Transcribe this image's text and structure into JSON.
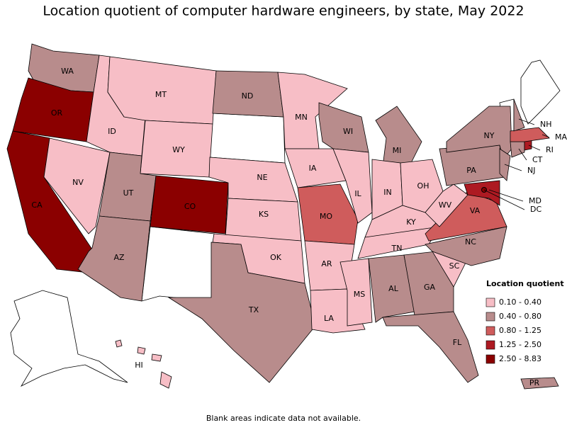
{
  "title": "Location quotient of computer hardware engineers, by state, May 2022",
  "note": "Blank areas indicate data not available.",
  "legend": {
    "title": "Location quotient",
    "entries": [
      {
        "label": "0.10 - 0.40",
        "color": "#f7bec6"
      },
      {
        "label": "0.40 - 0.80",
        "color": "#b88c8c"
      },
      {
        "label": "0.80 - 1.25",
        "color": "#cf5c5c"
      },
      {
        "label": "1.25 - 2.50",
        "color": "#ad1a22"
      },
      {
        "label": "2.50 - 8.83",
        "color": "#8b0000"
      }
    ]
  },
  "states": [
    {
      "label": "WA",
      "color": "#b88c8c"
    },
    {
      "label": "OR",
      "color": "#8b0000"
    },
    {
      "label": "CA",
      "color": "#8b0000"
    },
    {
      "label": "NV",
      "color": "#f7bec6"
    },
    {
      "label": "ID",
      "color": "#f7bec6"
    },
    {
      "label": "MT",
      "color": "#f7bec6"
    },
    {
      "label": "WY",
      "color": "#f7bec6"
    },
    {
      "label": "UT",
      "color": "#b88c8c"
    },
    {
      "label": "CO",
      "color": "#8b0000"
    },
    {
      "label": "AZ",
      "color": "#b88c8c"
    },
    {
      "label": "ND",
      "color": "#b88c8c"
    },
    {
      "label": "NE",
      "color": "#f7bec6"
    },
    {
      "label": "KS",
      "color": "#f7bec6"
    },
    {
      "label": "OK",
      "color": "#f7bec6"
    },
    {
      "label": "TX",
      "color": "#b88c8c"
    },
    {
      "label": "MN",
      "color": "#f7bec6"
    },
    {
      "label": "IA",
      "color": "#f7bec6"
    },
    {
      "label": "MO",
      "color": "#cf5c5c"
    },
    {
      "label": "AR",
      "color": "#f7bec6"
    },
    {
      "label": "LA",
      "color": "#f7bec6"
    },
    {
      "label": "WI",
      "color": "#b88c8c"
    },
    {
      "label": "IL",
      "color": "#f7bec6"
    },
    {
      "label": "MI",
      "color": "#b88c8c"
    },
    {
      "label": "IN",
      "color": "#f7bec6"
    },
    {
      "label": "OH",
      "color": "#f7bec6"
    },
    {
      "label": "KY",
      "color": "#f7bec6"
    },
    {
      "label": "TN",
      "color": "#f7bec6"
    },
    {
      "label": "MS",
      "color": "#f7bec6"
    },
    {
      "label": "AL",
      "color": "#b88c8c"
    },
    {
      "label": "GA",
      "color": "#b88c8c"
    },
    {
      "label": "FL",
      "color": "#b88c8c"
    },
    {
      "label": "SC",
      "color": "#f7bec6"
    },
    {
      "label": "NC",
      "color": "#b88c8c"
    },
    {
      "label": "VA",
      "color": "#cf5c5c"
    },
    {
      "label": "WV",
      "color": "#f7bec6"
    },
    {
      "label": "PA",
      "color": "#b88c8c"
    },
    {
      "label": "NY",
      "color": "#b88c8c"
    },
    {
      "label": "NJ",
      "color": "#b88c8c"
    },
    {
      "label": "CT",
      "color": "#b88c8c"
    },
    {
      "label": "RI",
      "color": "#ad1a22"
    },
    {
      "label": "MA",
      "color": "#cf5c5c"
    },
    {
      "label": "NH",
      "color": "#b88c8c"
    },
    {
      "label": "MD",
      "color": "#ad1a22"
    },
    {
      "label": "DC",
      "color": "#8b0000"
    },
    {
      "label": "HI",
      "color": "#f7bec6"
    },
    {
      "label": "PR",
      "color": "#b88c8c"
    }
  ]
}
